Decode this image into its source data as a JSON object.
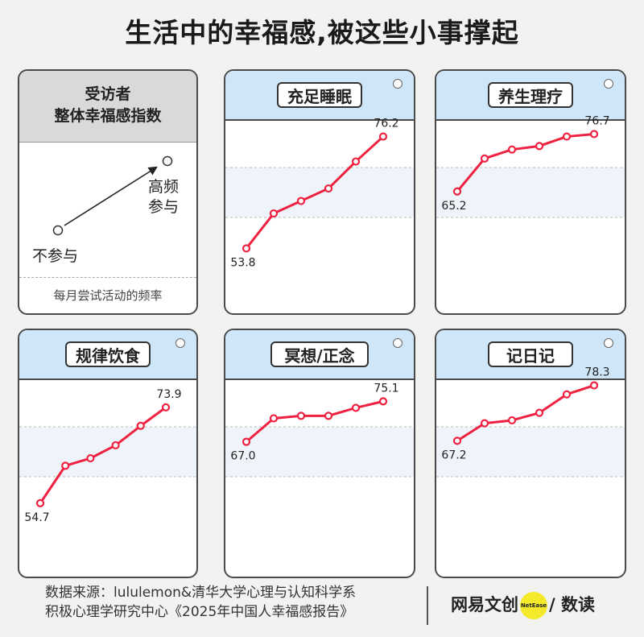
{
  "title": "生活中的幸福感,被这些小事撑起",
  "legend": {
    "heading_line1": "受访者",
    "heading_line2": "整体幸福感指数",
    "low_label": "不参与",
    "high_label_line1": "高频",
    "high_label_line2": "参与",
    "axis_caption": "每月尝试活动的频率"
  },
  "source": {
    "line1": "数据来源：lululemon&清华大学心理与认知科学系",
    "line2": "积极心理学研究中心《2025年中国人幸福感报告》"
  },
  "brand": {
    "name_left": "网易文创",
    "dot_text": "NetEase",
    "name_right": "/ 数读"
  },
  "colors": {
    "line": "#ee2240",
    "band": "#eef4fa",
    "header": "#cfe6f8"
  },
  "chart_data": [
    {
      "type": "line",
      "title": "充足睡眠",
      "ylim": [
        50,
        80
      ],
      "yticks": [
        50,
        60,
        70,
        80
      ],
      "x": [
        1,
        2,
        3,
        4,
        5,
        6
      ],
      "values": [
        53.8,
        60.8,
        63.3,
        65.8,
        71.2,
        76.2
      ],
      "labels": [
        "53.8",
        "76.2"
      ]
    },
    {
      "type": "line",
      "title": "养生理疗",
      "ylim": [
        50,
        80
      ],
      "x": [
        1,
        2,
        3,
        4,
        5,
        6
      ],
      "values": [
        65.2,
        71.8,
        73.6,
        74.3,
        76.2,
        76.7
      ],
      "labels": [
        "65.2",
        "76.7"
      ]
    },
    {
      "type": "line",
      "title": "规律饮食",
      "ylim": [
        50,
        80
      ],
      "x": [
        1,
        2,
        3,
        4,
        5,
        6
      ],
      "values": [
        54.7,
        62.2,
        63.7,
        66.3,
        70.2,
        73.9
      ],
      "labels": [
        "54.7",
        "73.9"
      ]
    },
    {
      "type": "line",
      "title": "冥想/正念",
      "ylim": [
        50,
        80
      ],
      "x": [
        1,
        2,
        3,
        4,
        5,
        6
      ],
      "values": [
        67.0,
        71.7,
        72.2,
        72.2,
        73.8,
        75.1
      ],
      "labels": [
        "67.0",
        "75.1"
      ]
    },
    {
      "type": "line",
      "title": "记日记",
      "ylim": [
        50,
        80
      ],
      "x": [
        1,
        2,
        3,
        4,
        5,
        6
      ],
      "values": [
        67.2,
        70.7,
        71.3,
        72.8,
        76.5,
        78.3
      ],
      "labels": [
        "67.2",
        "78.3"
      ]
    }
  ]
}
